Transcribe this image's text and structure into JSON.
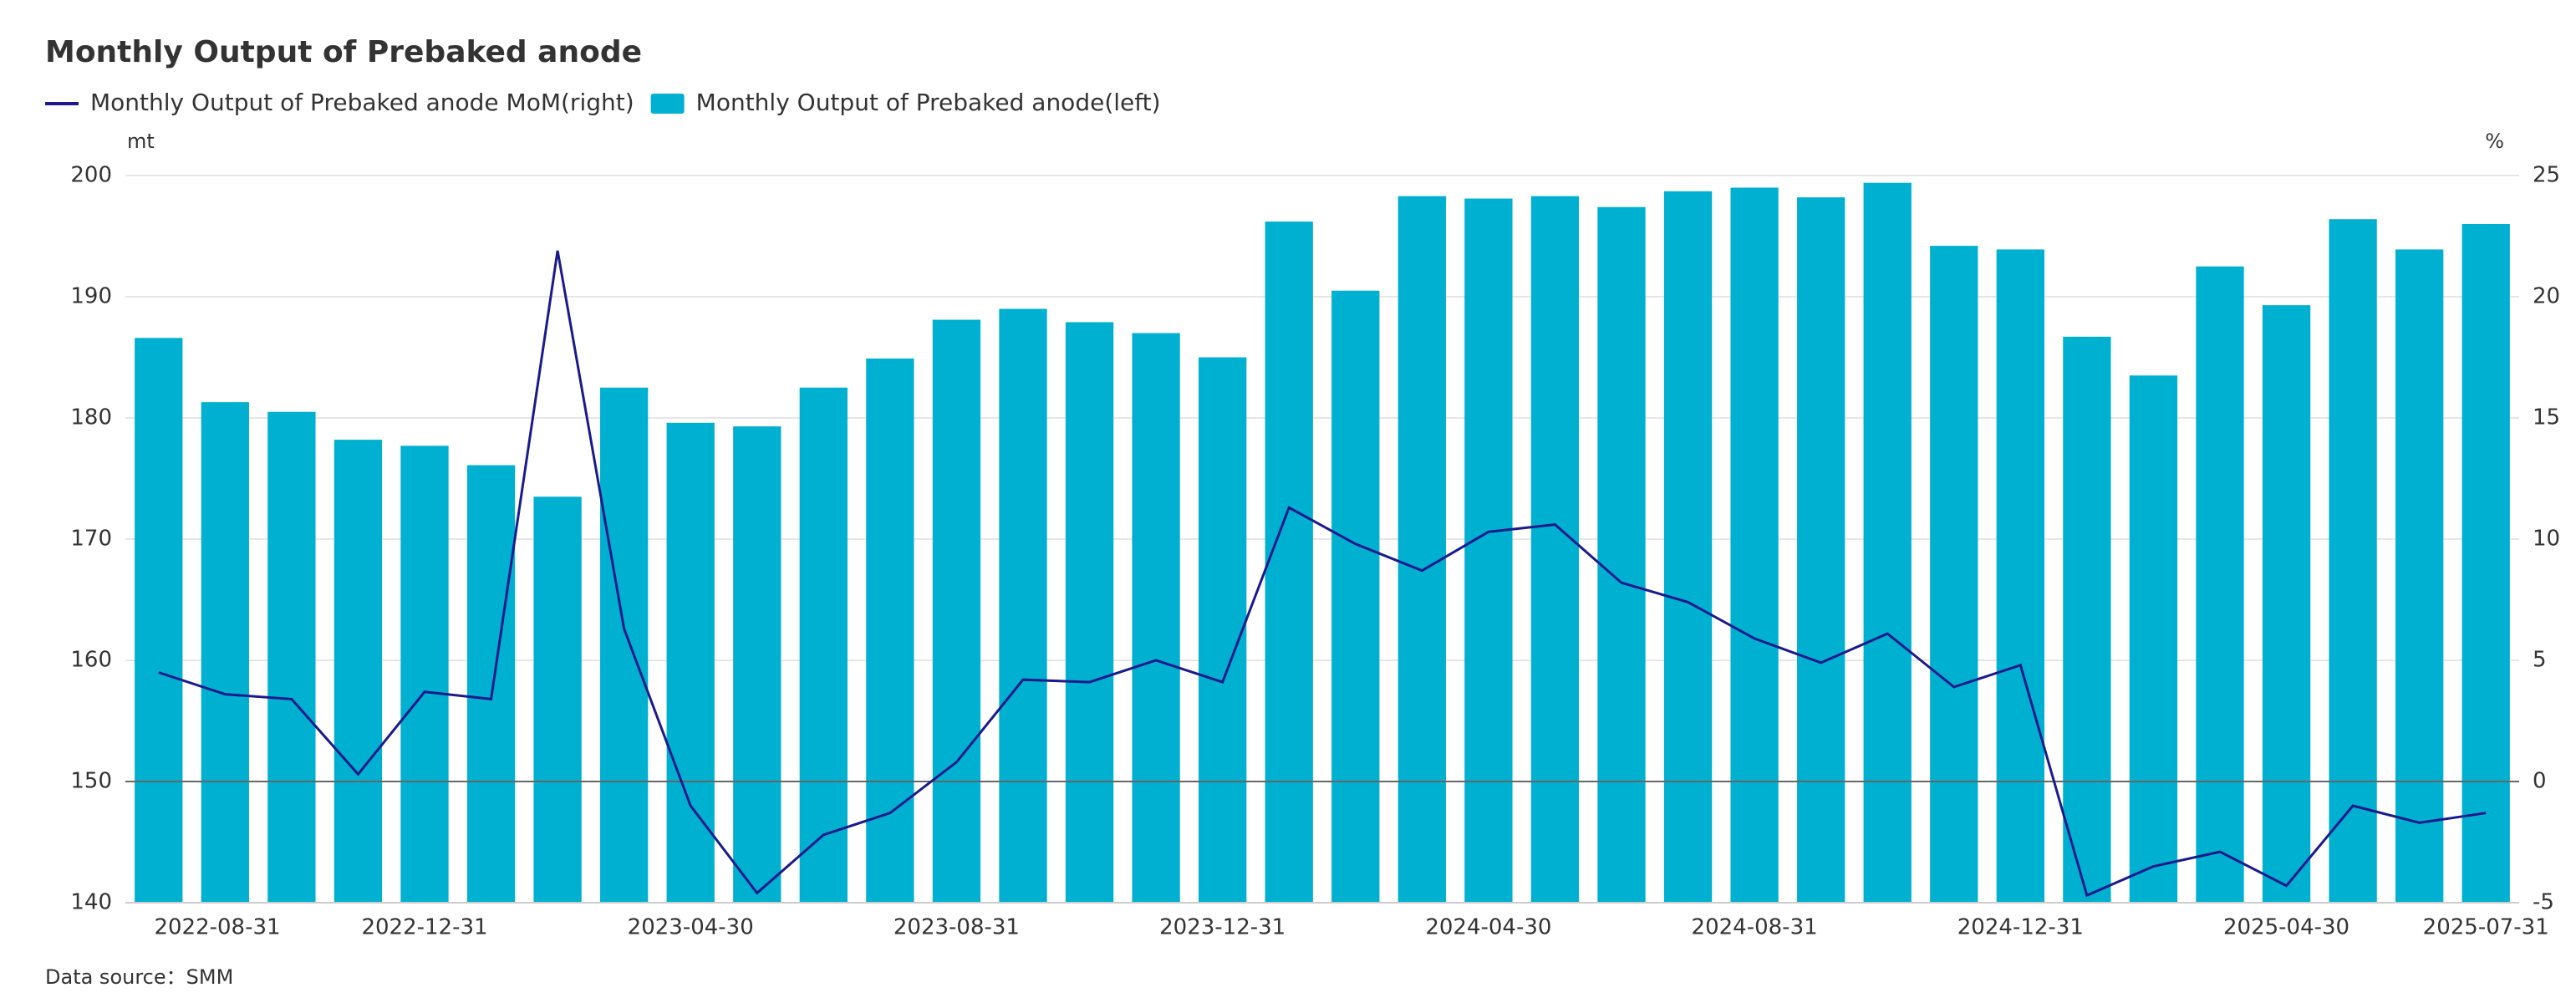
{
  "chart_data": {
    "type": "bar_line",
    "title": "Monthly Output of Prebaked anode",
    "y_label": "mt",
    "y2_label": "%",
    "source": "Data source：SMM",
    "categories": [
      "2022-08-31",
      null,
      null,
      null,
      "2022-12-31",
      null,
      null,
      null,
      "2023-04-30",
      null,
      null,
      null,
      "2023-08-31",
      null,
      null,
      null,
      "2023-12-31",
      null,
      null,
      null,
      "2024-04-30",
      null,
      null,
      null,
      "2024-08-31",
      null,
      null,
      null,
      "2024-12-31",
      null,
      null,
      null,
      "2025-04-30",
      null,
      null,
      "2025-07-31"
    ],
    "series": [
      {
        "name": "Monthly Output of Prebaked anode MoM(right)",
        "type": "line",
        "axis": "y2",
        "color": "#1a1a8c",
        "values": [
          4.5,
          3.6,
          3.4,
          0.3,
          3.7,
          3.4,
          21.9,
          6.3,
          -1.0,
          -4.6,
          -2.2,
          -1.3,
          0.8,
          4.2,
          4.1,
          5.0,
          4.1,
          11.3,
          9.8,
          8.7,
          10.3,
          10.6,
          8.2,
          7.4,
          5.9,
          4.9,
          6.1,
          3.9,
          4.8,
          -4.7,
          -3.5,
          -2.9,
          -4.3,
          -1.0,
          -1.7,
          -1.3
        ]
      },
      {
        "name": "Monthly Output of Prebaked anode(left)",
        "type": "bar",
        "axis": "y",
        "color": "#00b0d0",
        "values": [
          186.6,
          181.3,
          180.5,
          178.2,
          177.7,
          176.1,
          173.5,
          182.5,
          179.6,
          179.3,
          182.5,
          184.9,
          188.1,
          189.0,
          187.9,
          187.0,
          185.0,
          196.2,
          190.5,
          198.3,
          198.1,
          198.3,
          197.4,
          198.7,
          199.0,
          198.2,
          199.4,
          194.2,
          193.9,
          186.7,
          183.5,
          192.5,
          189.3,
          196.4,
          193.9,
          196.0
        ]
      }
    ],
    "ylim": [
      140,
      200
    ],
    "yticks": [
      140,
      150,
      160,
      170,
      180,
      190,
      200
    ],
    "y2lim": [
      -5,
      25
    ],
    "y2ticks": [
      -5,
      0,
      5,
      10,
      15,
      20,
      25
    ],
    "grid": true
  }
}
